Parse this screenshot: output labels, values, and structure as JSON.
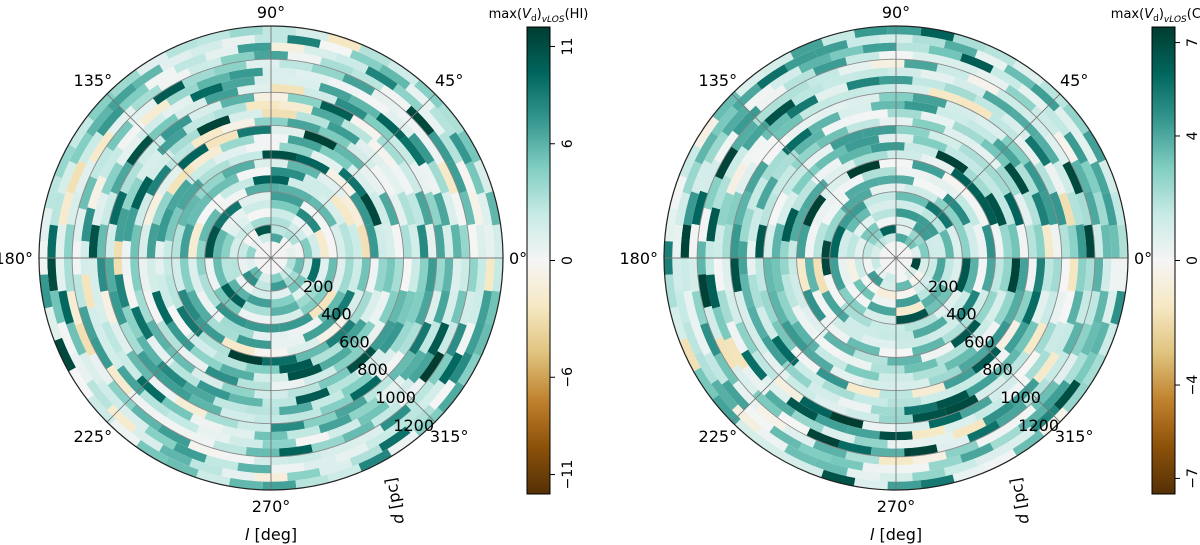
{
  "chart_data": [
    {
      "type": "heatmap",
      "projection": "polar",
      "xlabel": "l [deg]",
      "ylabel": "d [pc]",
      "angle_ticks": [
        {
          "value": 0,
          "label": "0°"
        },
        {
          "value": 45,
          "label": "45°"
        },
        {
          "value": 90,
          "label": "90°"
        },
        {
          "value": 135,
          "label": "135°"
        },
        {
          "value": 180,
          "label": "180°"
        },
        {
          "value": 225,
          "label": "225°"
        },
        {
          "value": 270,
          "label": "270°"
        },
        {
          "value": 315,
          "label": "315°"
        }
      ],
      "radial_ticks": [
        200,
        400,
        600,
        800,
        1000,
        1200
      ],
      "rlim": [
        0,
        1400
      ],
      "colorbar": {
        "title": "max(V_d)_vLOS(HI)",
        "title_main": "max(",
        "title_v": "V",
        "title_d": "d",
        "title_close": ")",
        "title_sub": "vLOS",
        "title_tail": "(HI)",
        "ticks": [
          -11,
          -6,
          0,
          6,
          11
        ],
        "vmin": -12,
        "vmax": 12,
        "colormap": "BrBG"
      },
      "colors": {
        "ring": 10,
        "sectors": 36
      },
      "seed": 11
    },
    {
      "type": "heatmap",
      "projection": "polar",
      "xlabel": "l [deg]",
      "ylabel": "d [pc]",
      "angle_ticks": [
        {
          "value": 0,
          "label": "0°"
        },
        {
          "value": 45,
          "label": "45°"
        },
        {
          "value": 90,
          "label": "90°"
        },
        {
          "value": 135,
          "label": "135°"
        },
        {
          "value": 180,
          "label": "180°"
        },
        {
          "value": 225,
          "label": "225°"
        },
        {
          "value": 270,
          "label": "270°"
        },
        {
          "value": 315,
          "label": "315°"
        }
      ],
      "radial_ticks": [
        200,
        400,
        600,
        800,
        1000,
        1200
      ],
      "rlim": [
        0,
        1400
      ],
      "colorbar": {
        "title": "max(V_d)_vLOS(CO)",
        "title_main": "max(",
        "title_v": "V",
        "title_d": "d",
        "title_close": ")",
        "title_sub": "vLOS",
        "title_tail": "(CO)",
        "ticks": [
          -7,
          -4,
          0,
          4,
          7
        ],
        "vmin": -7.5,
        "vmax": 7.5,
        "colormap": "BrBG"
      },
      "colors": {
        "ring": 10,
        "sectors": 36
      },
      "seed": 23
    }
  ]
}
